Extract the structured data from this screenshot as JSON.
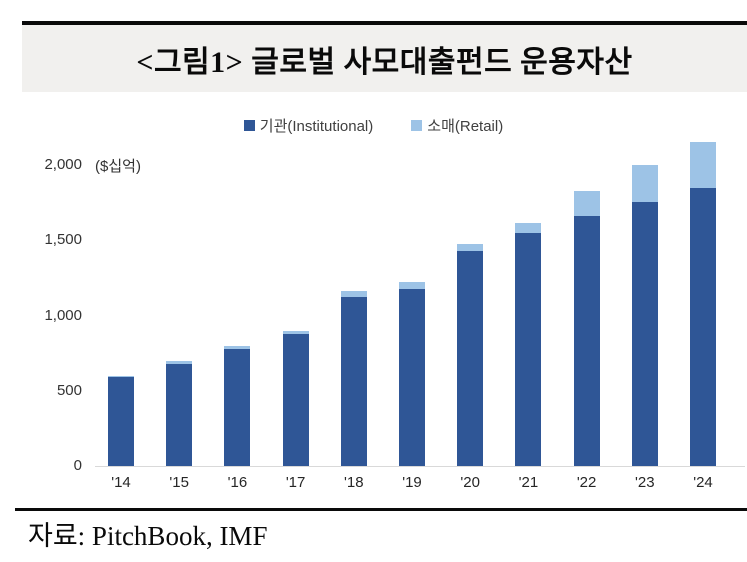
{
  "title": "<그림1> 글로벌 사모대출펀드 운용자산",
  "source": "자료: PitchBook, IMF",
  "unit_label": "($십억)",
  "legend": {
    "institutional_label": "기관(Institutional)",
    "retail_label": "소매(Retail)"
  },
  "colors": {
    "institutional": "#2f5696",
    "retail": "#9dc3e6",
    "title_band_bg": "#f1f0ee",
    "axis_line": "#d9d9d9"
  },
  "chart_data": {
    "type": "bar",
    "stacked": true,
    "title": "<그림1> 글로벌 사모대출펀드 운용자산",
    "categories": [
      "'14",
      "'15",
      "'16",
      "'17",
      "'18",
      "'19",
      "'20",
      "'21",
      "'22",
      "'23",
      "'24"
    ],
    "series": [
      {
        "name": "기관(Institutional)",
        "color": "#2f5696",
        "values": [
          590,
          675,
          780,
          880,
          1120,
          1175,
          1430,
          1550,
          1660,
          1755,
          1850
        ]
      },
      {
        "name": "소매(Retail)",
        "color": "#9dc3e6",
        "values": [
          10,
          20,
          15,
          20,
          40,
          45,
          45,
          65,
          170,
          245,
          305
        ]
      }
    ],
    "xlabel": "",
    "ylabel": "($십억)",
    "ylim": [
      0,
      2000
    ],
    "ytick_values": [
      0,
      500,
      1000,
      1500,
      2000
    ],
    "ytick_labels": [
      "0",
      "500",
      "1,000",
      "1,500",
      "2,000"
    ],
    "grid": false,
    "legend_position": "top"
  }
}
